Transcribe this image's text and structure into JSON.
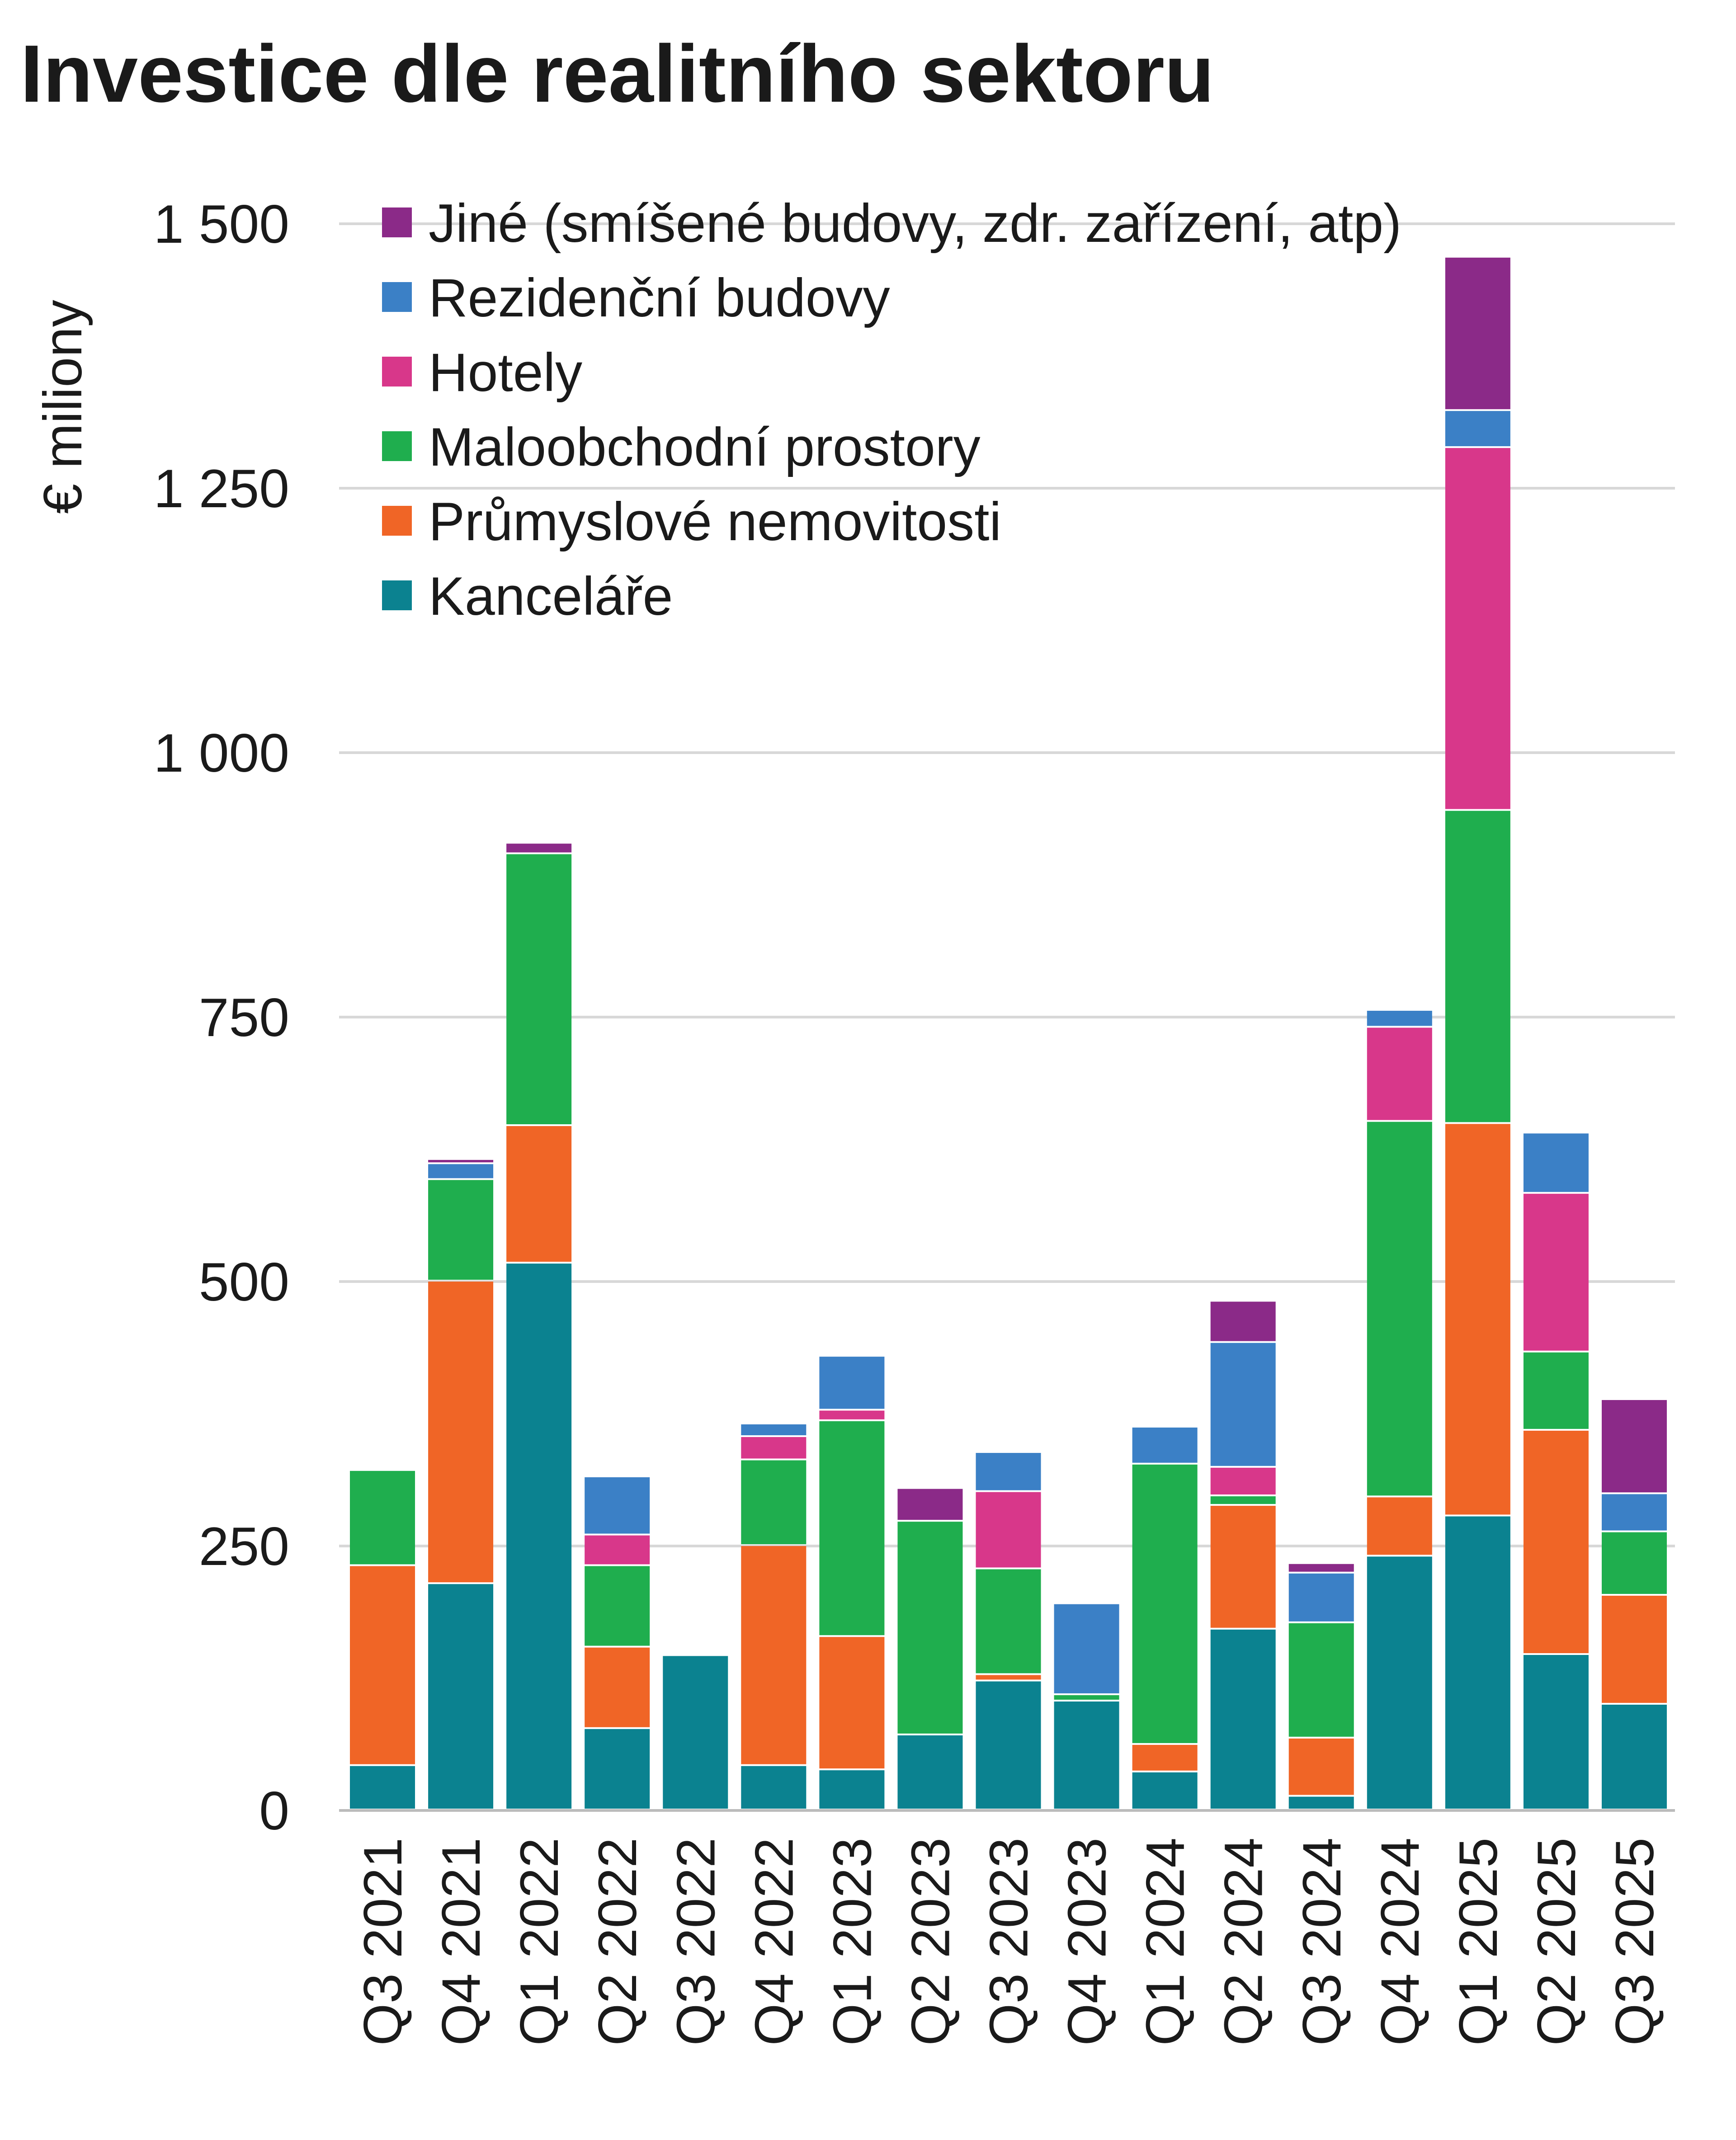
{
  "chart_data": {
    "type": "bar",
    "stacked": true,
    "title": "Investice dle realitního sektoru",
    "xlabel": "",
    "ylabel": "€ miliony",
    "ylim": [
      0,
      1500
    ],
    "yticks": [
      0,
      250,
      500,
      750,
      1000,
      1250,
      1500
    ],
    "ytick_labels": [
      "0",
      "250",
      "500",
      "750",
      "1 000",
      "1 250",
      "1 500"
    ],
    "grid": true,
    "legend_position": "top-left",
    "categories": [
      "Q3 2021",
      "Q4 2021",
      "Q1 2022",
      "Q2 2022",
      "Q3 2022",
      "Q4 2022",
      "Q1 2023",
      "Q2 2023",
      "Q3 2023",
      "Q4 2023",
      "Q1 2024",
      "Q2 2024",
      "Q3 2024",
      "Q4 2024",
      "Q1 2025",
      "Q2 2025",
      "Q3 2025"
    ],
    "series": [
      {
        "name": "Kanceláře",
        "color": "#0b8290",
        "values": [
          42,
          214,
          517,
          77,
          146,
          42,
          38,
          71,
          122,
          103,
          36,
          171,
          13,
          240,
          278,
          147,
          100
        ]
      },
      {
        "name": "Průmyslové nemovitosti",
        "color": "#f06526",
        "values": [
          189,
          286,
          130,
          77,
          0,
          208,
          126,
          0,
          6,
          0,
          26,
          117,
          55,
          56,
          371,
          212,
          103
        ]
      },
      {
        "name": "Maloobchodní prostory",
        "color": "#1fae4e",
        "values": [
          90,
          96,
          257,
          77,
          0,
          81,
          204,
          202,
          100,
          6,
          265,
          9,
          109,
          355,
          296,
          74,
          60
        ]
      },
      {
        "name": "Hotely",
        "color": "#d8378a",
        "values": [
          0,
          0,
          0,
          29,
          0,
          22,
          10,
          0,
          73,
          0,
          0,
          27,
          0,
          89,
          343,
          150,
          0
        ]
      },
      {
        "name": "Rezidenční budovy",
        "color": "#3b80c6",
        "values": [
          0,
          15,
          0,
          55,
          0,
          12,
          51,
          0,
          37,
          86,
          35,
          118,
          47,
          16,
          35,
          57,
          36
        ]
      },
      {
        "name": "Jiné (smíšené budovy, zdr. zařízení, atp)",
        "color": "#8b2a88",
        "values": [
          0,
          4,
          10,
          0,
          0,
          0,
          0,
          31,
          0,
          0,
          0,
          39,
          9,
          0,
          145,
          0,
          89
        ]
      }
    ]
  }
}
